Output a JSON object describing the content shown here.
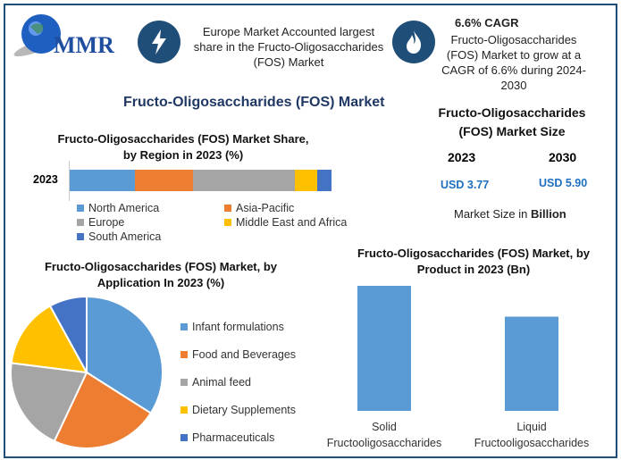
{
  "header": {
    "logo_text": "MMR",
    "highlight1": {
      "icon": "lightning-icon",
      "text": "Europe Market Accounted largest share in the Fructo-Oligosaccharides (FOS) Market"
    },
    "highlight2": {
      "icon": "flame-icon",
      "heading": "6.6% CAGR",
      "text": "Fructo-Oligosaccharides (FOS) Market to grow at a CAGR of 6.6% during 2024-2030"
    }
  },
  "main_title": "Fructo-Oligosaccharides (FOS) Market",
  "market_size": {
    "title": "Fructo-Oligosaccharides (FOS) Market Size",
    "year1": "2023",
    "value1": "USD 3.77",
    "year2": "2030",
    "value2": "USD 5.90",
    "note_prefix": "Market Size in ",
    "note_unit": "Billion"
  },
  "chart_data": [
    {
      "type": "bar",
      "orientation": "horizontal-stacked",
      "title": "Fructo-Oligosaccharides (FOS) Market Share, by Region in 2023 (%)",
      "categories": [
        "2023"
      ],
      "series": [
        {
          "name": "North America",
          "values": [
            25
          ],
          "color": "#5b9bd5"
        },
        {
          "name": "Asia-Pacific",
          "values": [
            22
          ],
          "color": "#ed7d31"
        },
        {
          "name": "Europe",
          "values": [
            39
          ],
          "color": "#a5a5a5"
        },
        {
          "name": "Middle East and Africa",
          "values": [
            8.5
          ],
          "color": "#ffc000"
        },
        {
          "name": "South America",
          "values": [
            5.5
          ],
          "color": "#4472c4"
        }
      ],
      "legend": "bottom"
    },
    {
      "type": "pie",
      "title": "Fructo-Oligosaccharides (FOS) Market, by Application In 2023 (%)",
      "labels": [
        "Infant formulations",
        "Food and Beverages",
        "Animal feed",
        "Dietary Supplements",
        "Pharmaceuticals"
      ],
      "values": [
        34,
        23,
        20,
        15,
        8
      ],
      "colors": [
        "#5b9bd5",
        "#ed7d31",
        "#a5a5a5",
        "#ffc000",
        "#4472c4"
      ],
      "legend": "right"
    },
    {
      "type": "bar",
      "title": "Fructo-Oligosaccharides (FOS) Market, by Product in 2023 (Bn)",
      "categories": [
        "Solid Fructooligosaccharides",
        "Liquid Fructooligosaccharides"
      ],
      "values": [
        2.15,
        1.62
      ],
      "color": "#5b9bd5",
      "grid": false
    }
  ]
}
